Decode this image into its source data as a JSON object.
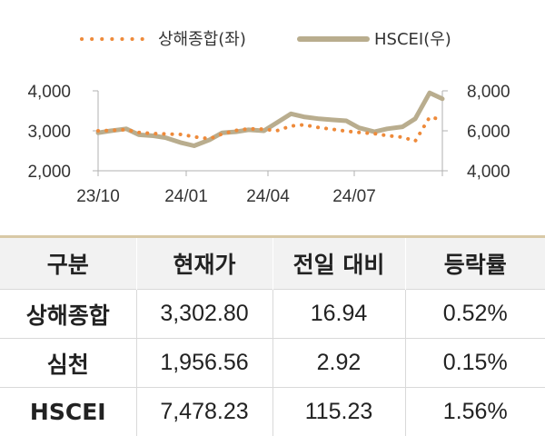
{
  "chart_data": {
    "type": "line",
    "x": [
      "2023-10-01",
      "2023-10-15",
      "2023-11-01",
      "2023-11-15",
      "2023-12-01",
      "2023-12-15",
      "2024-01-01",
      "2024-01-15",
      "2024-02-01",
      "2024-02-15",
      "2024-03-01",
      "2024-03-15",
      "2024-04-01",
      "2024-04-15",
      "2024-05-01",
      "2024-05-15",
      "2024-06-01",
      "2024-06-15",
      "2024-07-01",
      "2024-07-15",
      "2024-08-01",
      "2024-08-15",
      "2024-09-01",
      "2024-09-15",
      "2024-10-01",
      "2024-10-15"
    ],
    "series": [
      {
        "name": "상해종합(좌)",
        "axis": "left",
        "style": "dotted",
        "color": "#ee8a3a",
        "values": [
          3000,
          3010,
          3030,
          2960,
          2930,
          2920,
          2910,
          2850,
          2800,
          2920,
          3010,
          3050,
          3040,
          3000,
          3120,
          3150,
          3080,
          3040,
          2990,
          2960,
          2930,
          2880,
          2840,
          2740,
          3340,
          3280
        ]
      },
      {
        "name": "HSCEI(우)",
        "axis": "right",
        "style": "solid",
        "color": "#b9ad8e",
        "values": [
          5900,
          6000,
          6100,
          5800,
          5750,
          5650,
          5400,
          5250,
          5550,
          5900,
          5950,
          6050,
          6000,
          6400,
          6850,
          6700,
          6600,
          6550,
          6500,
          6150,
          5950,
          6100,
          6200,
          6600,
          7900,
          7600
        ]
      }
    ],
    "x_tick_labels": [
      "23/10",
      "24/01",
      "24/04",
      "24/07"
    ],
    "y_left": {
      "ticks": [
        "2,000",
        "3,000",
        "4,000"
      ],
      "range": [
        2000,
        4000
      ]
    },
    "y_right": {
      "ticks": [
        "4,000",
        "6,000",
        "8,000"
      ],
      "range": [
        4000,
        8000
      ]
    },
    "legend_position": "top",
    "grid": false
  },
  "table": {
    "headers": [
      "구분",
      "현재가",
      "전일 대비",
      "등락률"
    ],
    "rows": [
      [
        "상해종합",
        "3,302.80",
        "16.94",
        "0.52%"
      ],
      [
        "심천",
        "1,956.56",
        "2.92",
        "0.15%"
      ],
      [
        "HSCEI",
        "7,478.23",
        "115.23",
        "1.56%"
      ]
    ]
  },
  "colors": {
    "shanghai": "#ee8a3a",
    "hscei": "#b9ad8e",
    "header_bg": "#f2f2f2",
    "header_rule": "#d8c9a6"
  }
}
